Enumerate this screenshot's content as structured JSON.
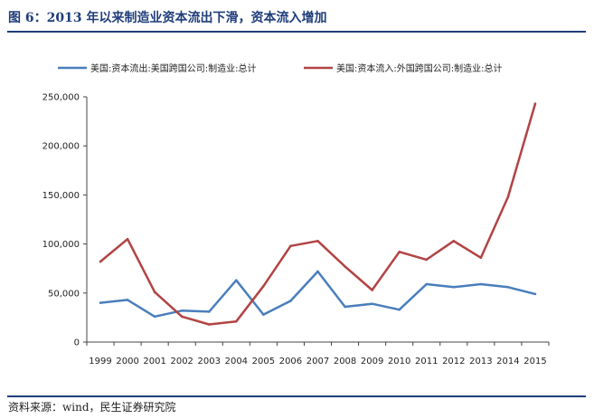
{
  "header": {
    "title": "图 6：2013 年以来制造业资本流出下滑，资本流入增加"
  },
  "footer": {
    "source": "资料来源：wind，民生证券研究院"
  },
  "colors": {
    "accent": "#1f3d7a",
    "series_outflow": "#4a7ebb",
    "series_inflow": "#b24343",
    "axis": "#444444"
  },
  "chart_data": {
    "type": "line",
    "x": [
      "1999",
      "2000",
      "2001",
      "2002",
      "2003",
      "2004",
      "2005",
      "2006",
      "2007",
      "2008",
      "2009",
      "2010",
      "2011",
      "2012",
      "2013",
      "2014",
      "2015"
    ],
    "series": [
      {
        "name": "美国:资本流出:美国跨国公司:制造业:总计",
        "color": "#4a7ebb",
        "values": [
          40000,
          43000,
          26000,
          32000,
          31000,
          63000,
          28000,
          42000,
          72000,
          36000,
          39000,
          33000,
          59000,
          56000,
          59000,
          56000,
          49000
        ]
      },
      {
        "name": "美国:资本流入:外国跨国公司:制造业:总计",
        "color": "#b24343",
        "values": [
          82000,
          105000,
          51000,
          26000,
          18000,
          21000,
          57000,
          98000,
          103000,
          77000,
          53000,
          92000,
          84000,
          103000,
          86000,
          148000,
          243000
        ]
      }
    ],
    "yticks": [
      "0",
      "50,000",
      "100,000",
      "150,000",
      "200,000",
      "250,000"
    ],
    "ylim": [
      0,
      250000
    ],
    "legend_position": "top",
    "grid": false
  }
}
